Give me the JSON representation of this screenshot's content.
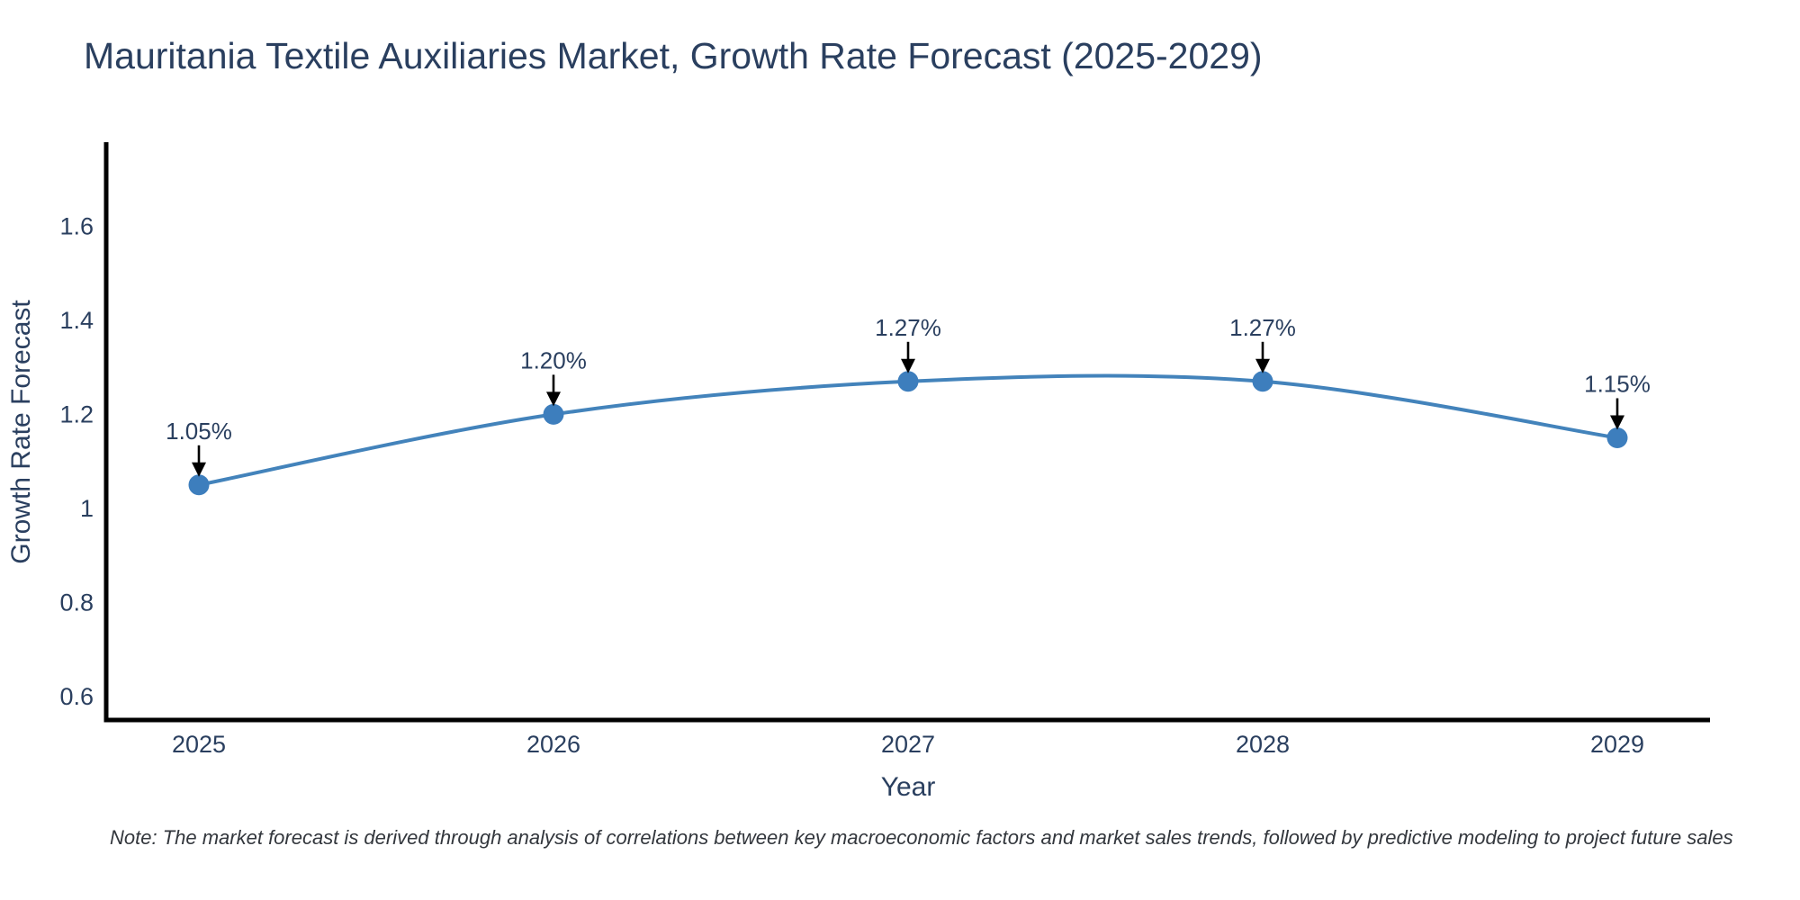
{
  "title": "Mauritania Textile Auxiliaries Market, Growth Rate Forecast (2025-2029)",
  "note": "Note: The market forecast is derived through analysis of correlations between key macroeconomic factors and market sales trends, followed by predictive modeling to project future sales",
  "chart_data": {
    "type": "line",
    "title": "Mauritania Textile Auxiliaries Market, Growth Rate Forecast (2025-2029)",
    "xlabel": "Year",
    "ylabel": "Growth Rate Forecast",
    "x": [
      2025,
      2026,
      2027,
      2028,
      2029
    ],
    "categories": [
      "2025",
      "2026",
      "2027",
      "2028",
      "2029"
    ],
    "series": [
      {
        "name": "Growth Rate Forecast",
        "values": [
          1.05,
          1.2,
          1.27,
          1.27,
          1.15
        ]
      }
    ],
    "point_labels": [
      "1.05%",
      "1.20%",
      "1.27%",
      "1.27%",
      "1.15%"
    ],
    "ylim": [
      0.55,
      1.775
    ],
    "yticks": [
      0.6,
      0.8,
      1.0,
      1.2,
      1.4,
      1.6
    ],
    "ytick_labels": [
      "0.6",
      "0.8",
      "1",
      "1.2",
      "1.4",
      "1.6"
    ],
    "grid": false,
    "legend": "none",
    "line_style": "spline",
    "colors": {
      "line": "#4383bb",
      "marker": "#3d7ebd",
      "axis": "#000000",
      "text": "#2a3f5f",
      "annotation_text": "#2a3f5f",
      "arrow": "#000000",
      "background": "#ffffff"
    }
  }
}
